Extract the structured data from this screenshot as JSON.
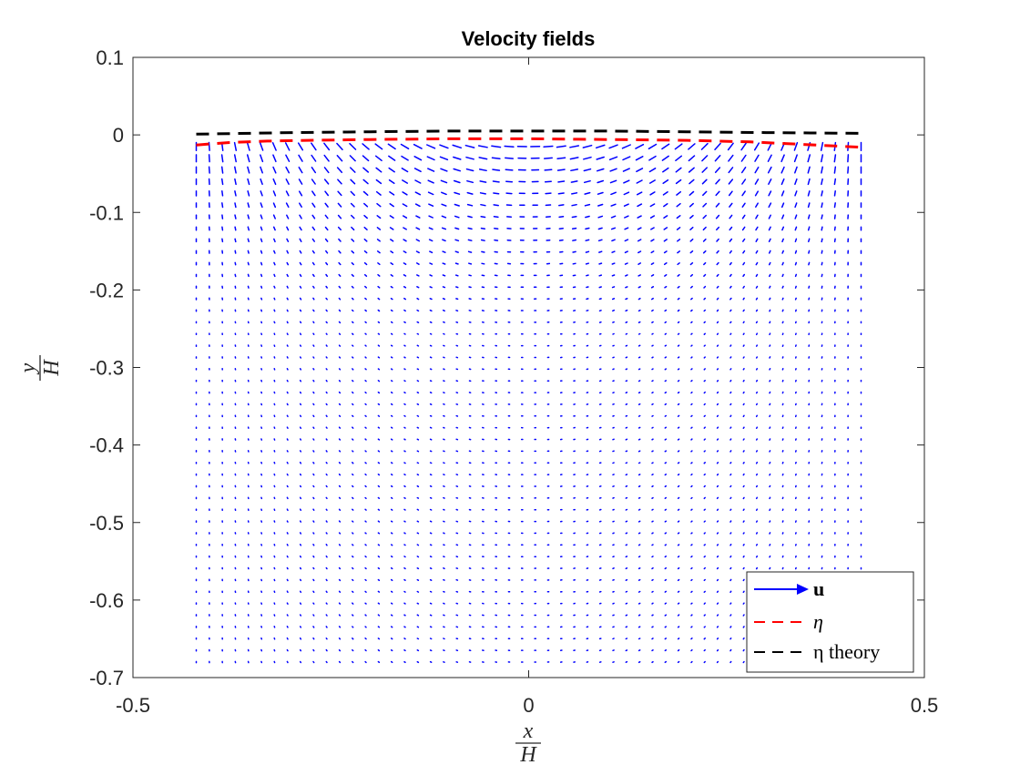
{
  "chart_data": {
    "type": "quiver",
    "title": "Velocity fields",
    "xlabel": {
      "numerator": "x",
      "denominator": "H"
    },
    "ylabel": {
      "numerator": "y",
      "denominator": "H"
    },
    "xlim": [
      -0.5,
      0.5
    ],
    "ylim": [
      -0.7,
      0.1
    ],
    "xticks": [
      -0.5,
      0,
      0.5
    ],
    "xtick_labels": [
      "-0.5",
      "0",
      "0.5"
    ],
    "yticks": [
      0.1,
      0,
      -0.1,
      -0.2,
      -0.3,
      -0.4,
      -0.5,
      -0.6,
      -0.7
    ],
    "ytick_labels": [
      "0.1",
      "0",
      "-0.1",
      "-0.2",
      "-0.3",
      "-0.4",
      "-0.5",
      "-0.6",
      "-0.7"
    ],
    "grid": false,
    "legend_position": "bottom-right",
    "series": [
      {
        "name": "u",
        "kind": "quiver",
        "color": "#0000ff",
        "x_range": [
          -0.42,
          0.42
        ],
        "y_range": [
          -0.68,
          -0.015
        ],
        "nx": 52,
        "ny": 45
      },
      {
        "name": "η",
        "kind": "dashed-line",
        "color": "#ff0000",
        "x": [
          -0.42,
          -0.38,
          -0.33,
          -0.28,
          -0.2,
          -0.1,
          0,
          0.1,
          0.2,
          0.28,
          0.34,
          0.38,
          0.42
        ],
        "y": [
          -0.013,
          -0.01,
          -0.008,
          -0.007,
          -0.006,
          -0.005,
          -0.005,
          -0.006,
          -0.007,
          -0.009,
          -0.012,
          -0.014,
          -0.016
        ]
      },
      {
        "name": "η theory",
        "kind": "dashed-line",
        "color": "#000000",
        "x": [
          -0.42,
          -0.3,
          -0.2,
          -0.1,
          0,
          0.1,
          0.2,
          0.3,
          0.42
        ],
        "y": [
          0.001,
          0.003,
          0.004,
          0.005,
          0.005,
          0.005,
          0.004,
          0.003,
          0.002
        ]
      }
    ],
    "legend": {
      "u_label": "u",
      "eta_label": "η",
      "eta_theory_label": "η theory"
    }
  }
}
